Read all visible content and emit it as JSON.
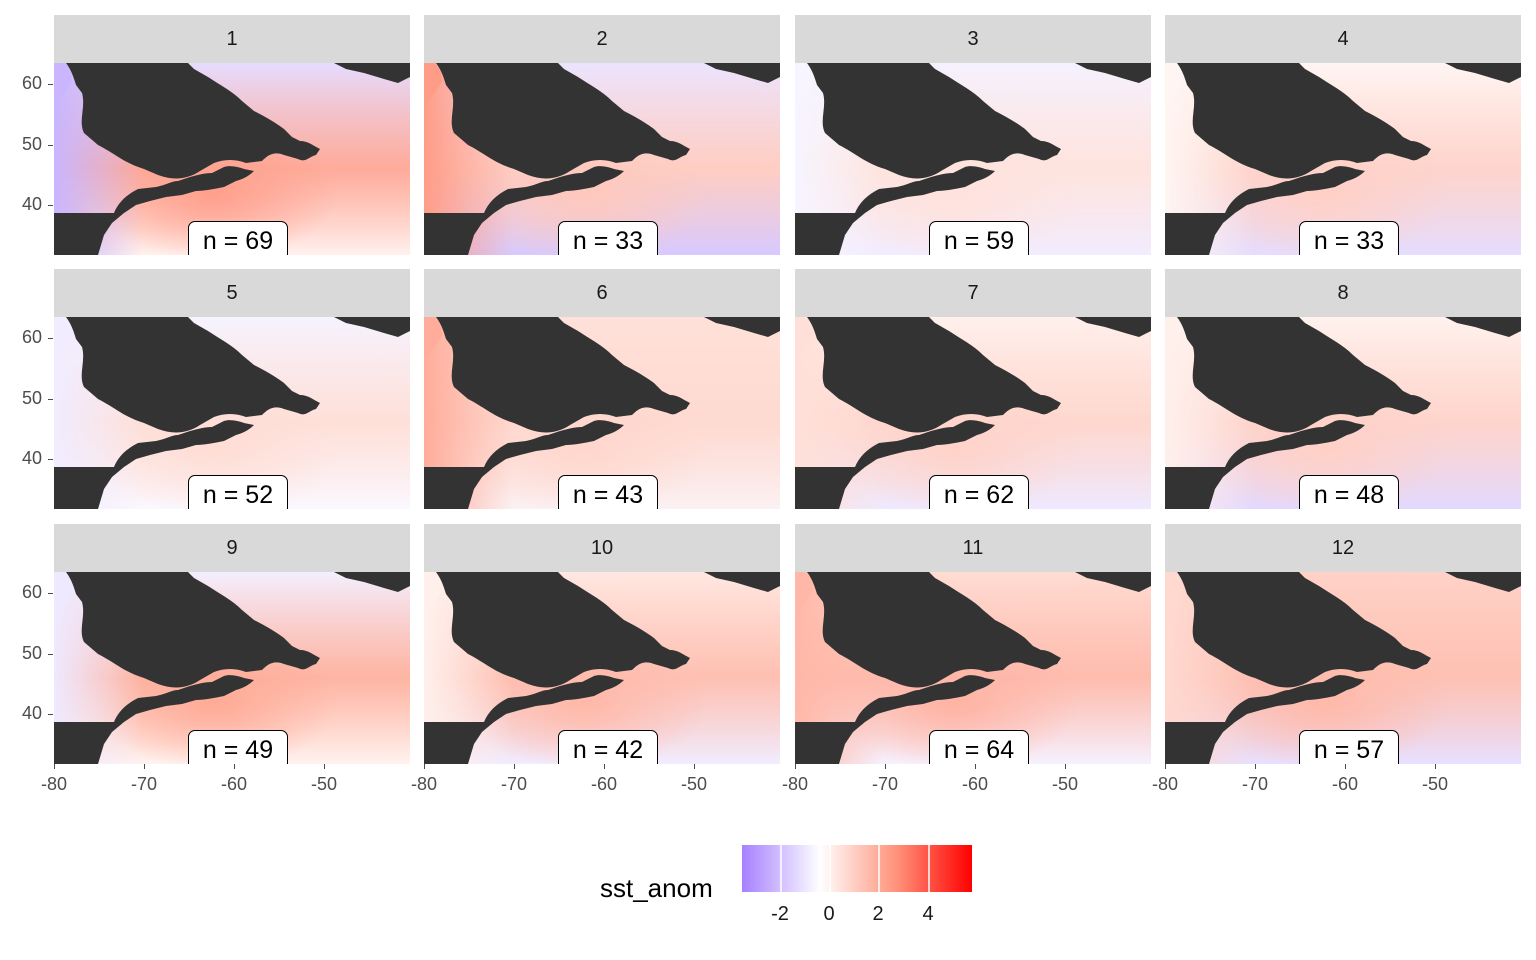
{
  "facets": [
    {
      "label": "1",
      "n_label": "n = 69",
      "coastal": "#ff9f8c",
      "north": "#e6dcff",
      "south": "#fff1ee",
      "west": "#c9b6ff"
    },
    {
      "label": "2",
      "n_label": "n = 33",
      "coastal": "#ffc8bc",
      "north": "#ece4ff",
      "south": "#d7c9ff",
      "west": "#ff9c88"
    },
    {
      "label": "3",
      "n_label": "n = 59",
      "coastal": "#ffe2dc",
      "north": "#f5f1ff",
      "south": "#f2ecff",
      "west": "#f7f5ff"
    },
    {
      "label": "4",
      "n_label": "n = 33",
      "coastal": "#ffd0c6",
      "north": "#fff5f3",
      "south": "#e5dcff",
      "west": "#fff5f2"
    },
    {
      "label": "5",
      "n_label": "n = 52",
      "coastal": "#ffddd5",
      "north": "#f6f3ff",
      "south": "#fbf8ff",
      "west": "#f1ecff"
    },
    {
      "label": "6",
      "n_label": "n = 43",
      "coastal": "#ffd6cc",
      "north": "#ffe1d9",
      "south": "#fbf1f3",
      "west": "#ffac9a"
    },
    {
      "label": "7",
      "n_label": "n = 62",
      "coastal": "#ffd3c9",
      "north": "#fff0ec",
      "south": "#efe9ff",
      "west": "#ffe0d9"
    },
    {
      "label": "8",
      "n_label": "n = 48",
      "coastal": "#ffd0c6",
      "north": "#fff2ee",
      "south": "#e3d9ff",
      "west": "#fff0ec"
    },
    {
      "label": "9",
      "n_label": "n = 49",
      "coastal": "#ffaa96",
      "north": "#f3efff",
      "south": "#fff3f0",
      "west": "#efe9ff"
    },
    {
      "label": "10",
      "n_label": "n = 42",
      "coastal": "#ffb8a8",
      "north": "#ffe8e2",
      "south": "#f1ecff",
      "west": "#fff0ec"
    },
    {
      "label": "11",
      "n_label": "n = 64",
      "coastal": "#ffb3a3",
      "north": "#ffdcd3",
      "south": "#f6f1ff",
      "west": "#ffb8a8"
    },
    {
      "label": "12",
      "n_label": "n = 57",
      "coastal": "#ffb9a9",
      "north": "#ffd2c8",
      "south": "#e8e0ff",
      "west": "#ffd9d0"
    }
  ],
  "axes": {
    "x_ticks": [
      "-80",
      "-70",
      "-60",
      "-50"
    ],
    "y_ticks": [
      "60",
      "50",
      "40"
    ]
  },
  "legend": {
    "title": "sst_anom",
    "ticks": [
      "-2",
      "0",
      "2",
      "4"
    ],
    "colors": {
      "low": "#a680ff",
      "mid": "#ffffff",
      "high": "#ff0000"
    }
  },
  "land_color": "#333333"
}
